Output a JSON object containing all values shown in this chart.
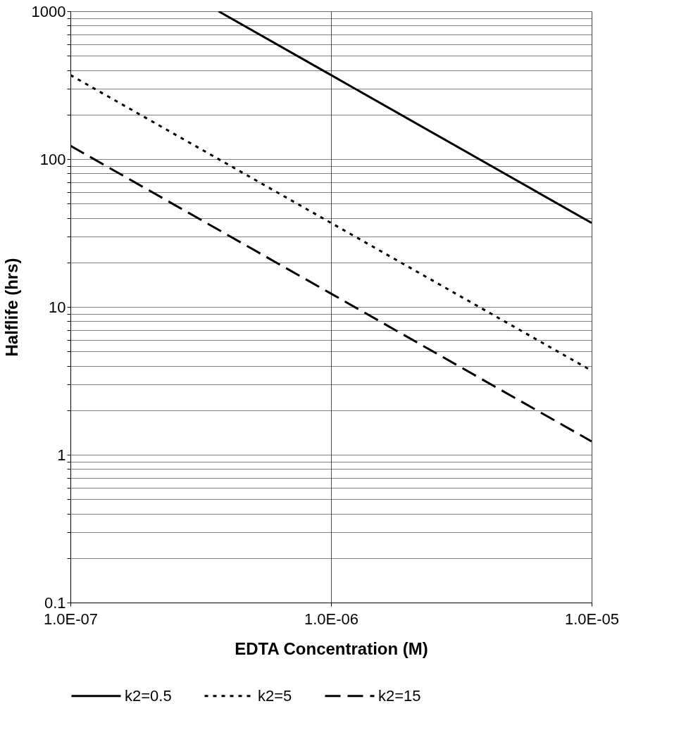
{
  "chart_data": {
    "type": "line",
    "xlabel": "EDTA Concentration (M)",
    "ylabel": "Halflife (hrs)",
    "log": "xy",
    "xlim": [
      1e-07,
      1e-05
    ],
    "ylim": [
      0.1,
      1000
    ],
    "xticks": [
      {
        "value": 1e-07,
        "label": "1.0E-07"
      },
      {
        "value": 1e-06,
        "label": "1.0E-06"
      },
      {
        "value": 1e-05,
        "label": "1.0E-05"
      }
    ],
    "yticks": [
      0.1,
      {
        "value": 0.2,
        "label": null
      },
      {
        "value": 0.3,
        "label": null
      },
      {
        "value": 0.4,
        "label": null
      },
      {
        "value": 0.5,
        "label": null
      },
      {
        "value": 0.6,
        "label": null
      },
      {
        "value": 0.7,
        "label": null
      },
      {
        "value": 0.8,
        "label": null
      },
      {
        "value": 0.9,
        "label": null
      },
      1,
      {
        "value": 2,
        "label": null
      },
      {
        "value": 3,
        "label": null
      },
      {
        "value": 4,
        "label": null
      },
      {
        "value": 5,
        "label": null
      },
      {
        "value": 6,
        "label": null
      },
      {
        "value": 7,
        "label": null
      },
      {
        "value": 8,
        "label": null
      },
      {
        "value": 9,
        "label": null
      },
      10,
      {
        "value": 20,
        "label": null
      },
      {
        "value": 30,
        "label": null
      },
      {
        "value": 40,
        "label": null
      },
      {
        "value": 50,
        "label": null
      },
      {
        "value": 60,
        "label": null
      },
      {
        "value": 70,
        "label": null
      },
      {
        "value": 80,
        "label": null
      },
      {
        "value": 90,
        "label": null
      },
      100,
      {
        "value": 200,
        "label": null
      },
      {
        "value": 300,
        "label": null
      },
      {
        "value": 400,
        "label": null
      },
      {
        "value": 500,
        "label": null
      },
      {
        "value": 600,
        "label": null
      },
      {
        "value": 700,
        "label": null
      },
      {
        "value": 800,
        "label": null
      },
      {
        "value": 900,
        "label": null
      },
      1000
    ],
    "grid": true,
    "legend": "bottom",
    "marker": "none",
    "series": [
      {
        "name": "k2=0.5",
        "color": "#000000",
        "line_style": "solid",
        "x": [
          3.7e-07,
          1e-06,
          1e-05
        ],
        "values": [
          1000,
          370,
          37
        ]
      },
      {
        "name": "k2=5",
        "color": "#000000",
        "line_style": "dotted",
        "x": [
          1e-07,
          1e-06,
          1e-05
        ],
        "values": [
          370,
          37,
          3.7
        ]
      },
      {
        "name": "k2=15",
        "color": "#000000",
        "line_style": "dashed",
        "x": [
          1e-07,
          1e-06,
          1e-05
        ],
        "values": [
          123,
          12.3,
          1.23
        ]
      }
    ]
  }
}
